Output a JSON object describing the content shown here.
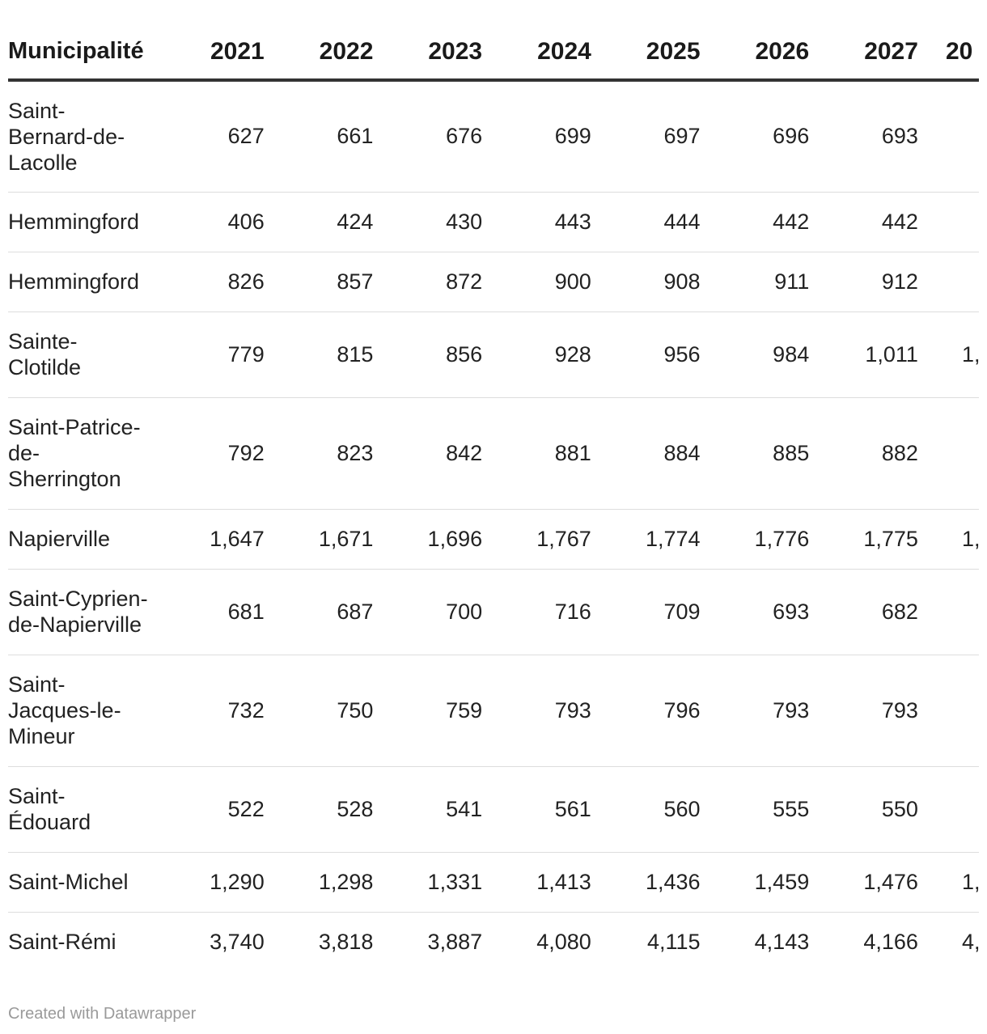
{
  "chart_data": {
    "type": "table",
    "columns": [
      "Municipalité",
      "2021",
      "2022",
      "2023",
      "2024",
      "2025",
      "2026",
      "2027",
      "20"
    ],
    "rows": [
      {
        "name": "Saint-Bernard-de-Lacolle",
        "name_lines": [
          "Saint-",
          "Bernard-de-",
          "Lacolle"
        ],
        "values": [
          "627",
          "661",
          "676",
          "699",
          "697",
          "696",
          "693",
          ""
        ]
      },
      {
        "name": "Hemmingford",
        "name_lines": [
          "Hemmingford"
        ],
        "values": [
          "406",
          "424",
          "430",
          "443",
          "444",
          "442",
          "442",
          ""
        ]
      },
      {
        "name": "Hemmingford",
        "name_lines": [
          "Hemmingford"
        ],
        "values": [
          "826",
          "857",
          "872",
          "900",
          "908",
          "911",
          "912",
          ""
        ]
      },
      {
        "name": "Sainte-Clotilde",
        "name_lines": [
          "Sainte-",
          "Clotilde"
        ],
        "values": [
          "779",
          "815",
          "856",
          "928",
          "956",
          "984",
          "1,011",
          "1,"
        ]
      },
      {
        "name": "Saint-Patrice-de-Sherrington",
        "name_lines": [
          "Saint-Patrice-",
          "de-",
          "Sherrington"
        ],
        "values": [
          "792",
          "823",
          "842",
          "881",
          "884",
          "885",
          "882",
          ""
        ]
      },
      {
        "name": "Napierville",
        "name_lines": [
          "Napierville"
        ],
        "values": [
          "1,647",
          "1,671",
          "1,696",
          "1,767",
          "1,774",
          "1,776",
          "1,775",
          "1,"
        ]
      },
      {
        "name": "Saint-Cyprien-de-Napierville",
        "name_lines": [
          "Saint-Cyprien-",
          "de-Napierville"
        ],
        "values": [
          "681",
          "687",
          "700",
          "716",
          "709",
          "693",
          "682",
          ""
        ]
      },
      {
        "name": "Saint-Jacques-le-Mineur",
        "name_lines": [
          "Saint-",
          "Jacques-le-",
          "Mineur"
        ],
        "values": [
          "732",
          "750",
          "759",
          "793",
          "796",
          "793",
          "793",
          ""
        ]
      },
      {
        "name": "Saint-Édouard",
        "name_lines": [
          "Saint-",
          "Édouard"
        ],
        "values": [
          "522",
          "528",
          "541",
          "561",
          "560",
          "555",
          "550",
          ""
        ]
      },
      {
        "name": "Saint-Michel",
        "name_lines": [
          "Saint-Michel"
        ],
        "values": [
          "1,290",
          "1,298",
          "1,331",
          "1,413",
          "1,436",
          "1,459",
          "1,476",
          "1,"
        ]
      },
      {
        "name": "Saint-Rémi",
        "name_lines": [
          "Saint-Rémi"
        ],
        "values": [
          "3,740",
          "3,818",
          "3,887",
          "4,080",
          "4,115",
          "4,143",
          "4,166",
          "4,"
        ]
      }
    ]
  },
  "footer": {
    "credit": "Created with Datawrapper"
  }
}
